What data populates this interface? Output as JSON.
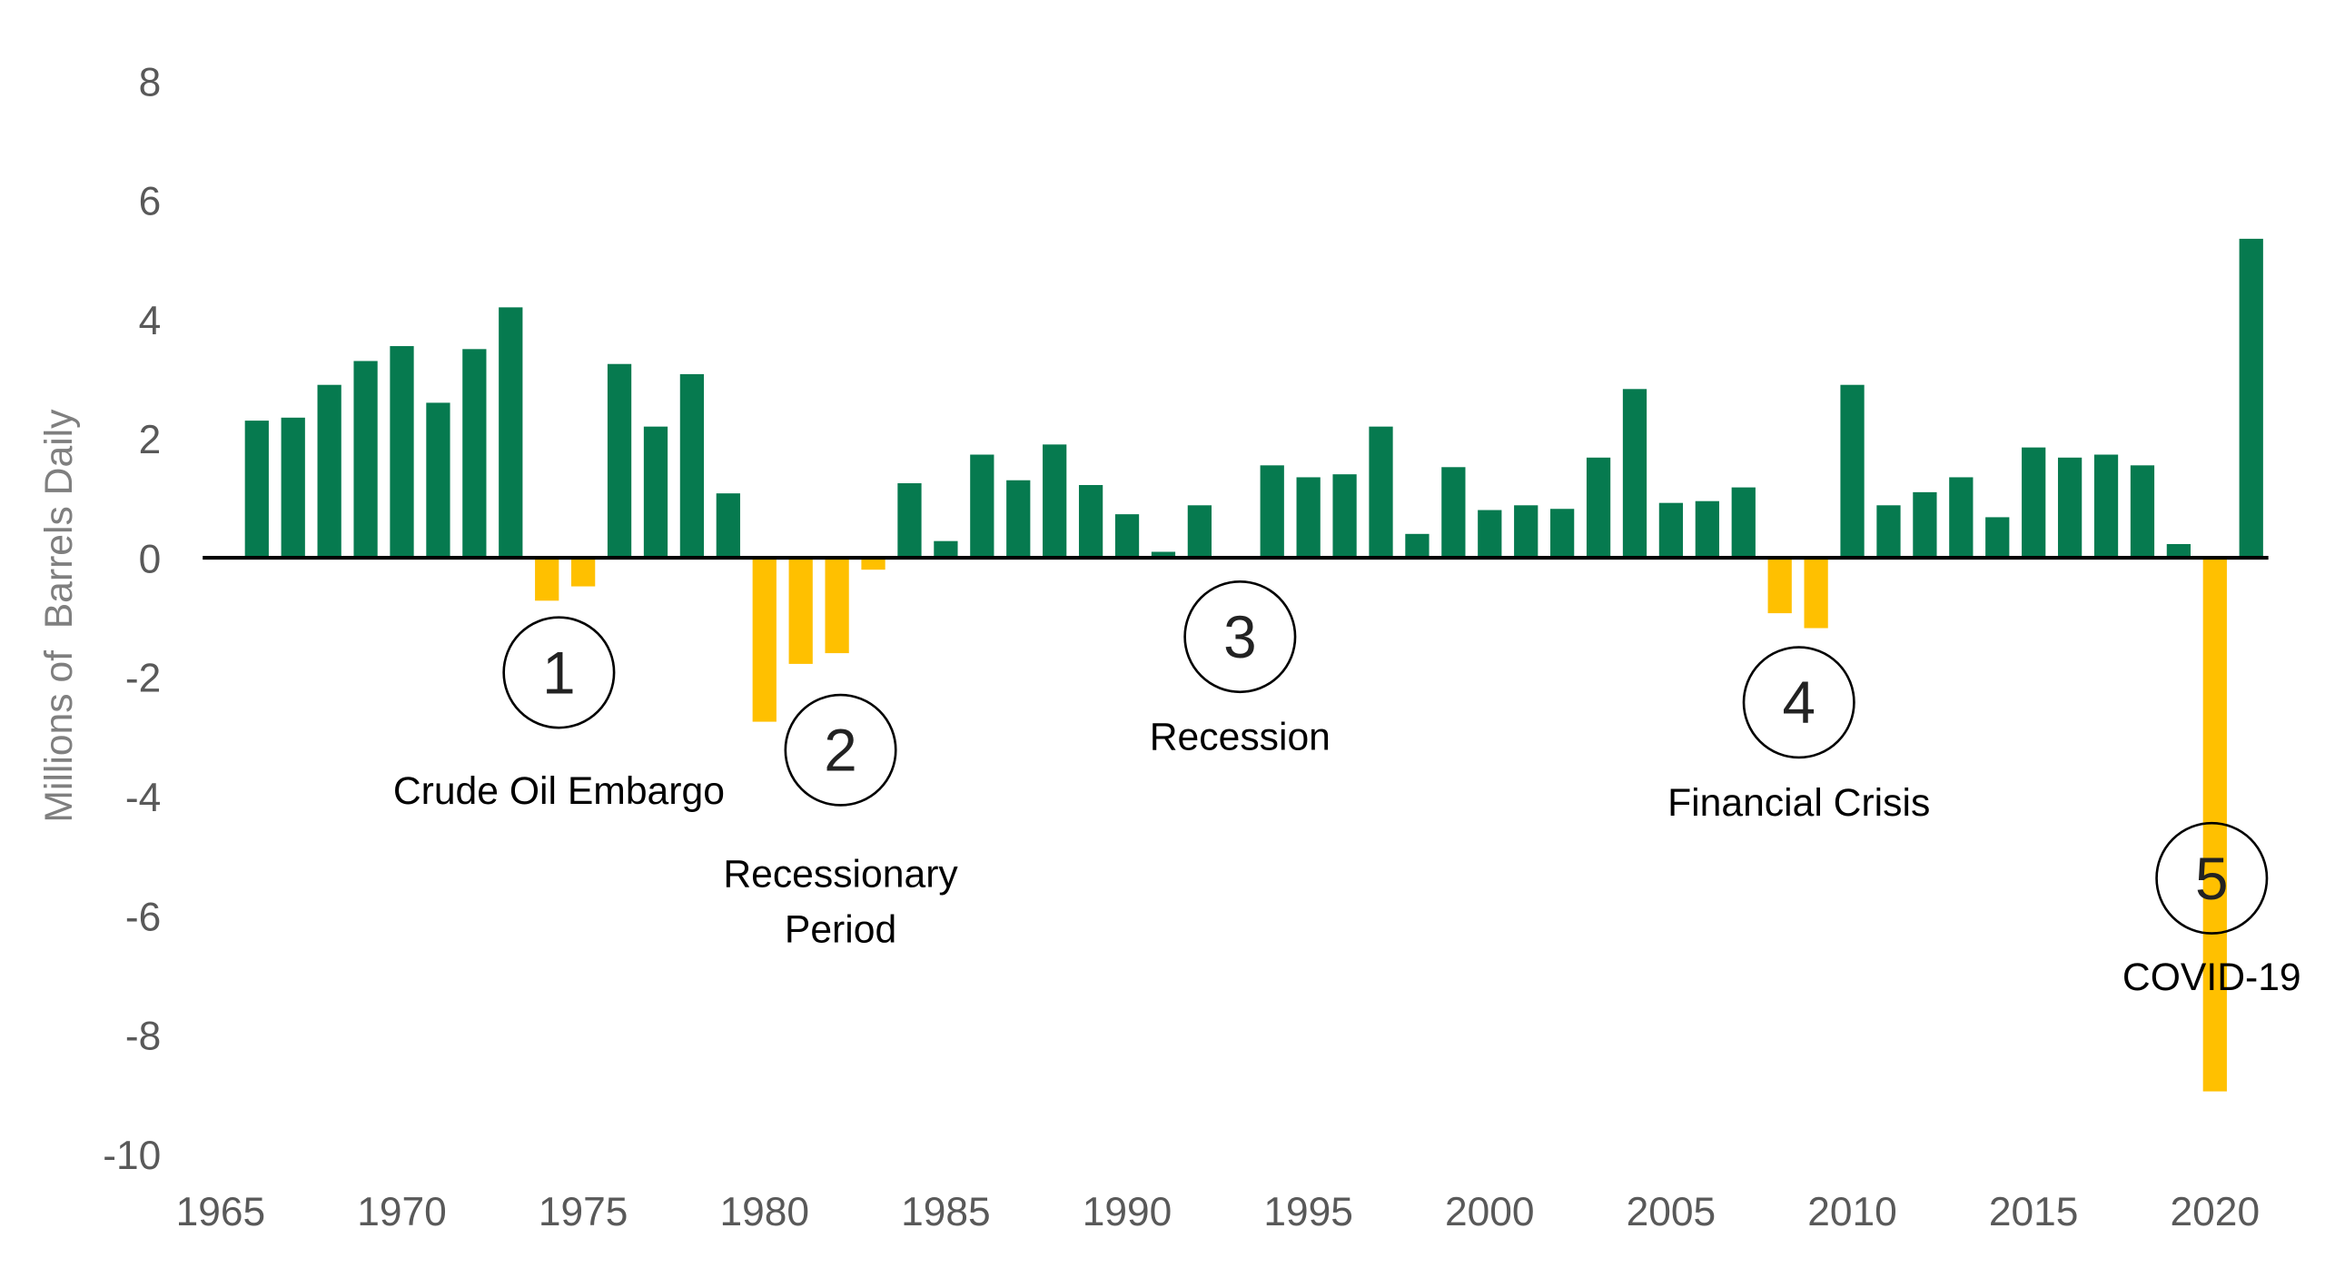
{
  "chart_data": {
    "type": "bar",
    "title": "",
    "xlabel": "",
    "ylabel": "Millions of  Barrels Daily",
    "ylim": [
      -10,
      8
    ],
    "yticks": [
      "8",
      "6",
      "4",
      "2",
      "0",
      "-2",
      "-4",
      "-6",
      "-8",
      "-10"
    ],
    "xticks": [
      "1965",
      "1970",
      "1975",
      "1980",
      "1985",
      "1990",
      "1995",
      "2000",
      "2005",
      "2010",
      "2015",
      "2020"
    ],
    "grid": false,
    "colors": {
      "positive": "#067a4f",
      "negative": "#ffc000"
    },
    "x": [
      1966,
      1967,
      1968,
      1969,
      1970,
      1971,
      1972,
      1973,
      1974,
      1975,
      1976,
      1977,
      1978,
      1979,
      1980,
      1981,
      1982,
      1983,
      1984,
      1985,
      1986,
      1987,
      1988,
      1989,
      1990,
      1991,
      1992,
      1993,
      1994,
      1995,
      1996,
      1997,
      1998,
      1999,
      2000,
      2001,
      2002,
      2003,
      2004,
      2005,
      2006,
      2007,
      2008,
      2009,
      2010,
      2011,
      2012,
      2013,
      2014,
      2015,
      2016,
      2017,
      2018,
      2019,
      2020,
      2021
    ],
    "values": [
      2.3,
      2.35,
      2.9,
      3.3,
      3.55,
      2.6,
      3.5,
      4.2,
      -0.72,
      -0.48,
      3.25,
      2.2,
      3.08,
      1.08,
      -2.75,
      -1.78,
      -1.6,
      -0.2,
      1.25,
      0.28,
      1.73,
      1.3,
      1.9,
      1.22,
      0.73,
      0.1,
      0.88,
      0,
      1.55,
      1.35,
      1.4,
      2.2,
      0.4,
      1.52,
      0.8,
      0.88,
      0.82,
      1.68,
      2.83,
      0.92,
      0.95,
      1.18,
      -0.93,
      -1.18,
      2.9,
      0.88,
      1.1,
      1.35,
      0.68,
      1.85,
      1.68,
      1.73,
      1.55,
      0.23,
      -8.95,
      5.35
    ],
    "annotations": [
      {
        "number": "1",
        "label": [
          "Crude Oil Embargo"
        ]
      },
      {
        "number": "2",
        "label": [
          "Recessionary",
          "Period"
        ]
      },
      {
        "number": "3",
        "label": [
          "Recession"
        ]
      },
      {
        "number": "4",
        "label": [
          "Financial Crisis"
        ]
      },
      {
        "number": "5",
        "label": [
          "COVID-19"
        ]
      }
    ]
  }
}
